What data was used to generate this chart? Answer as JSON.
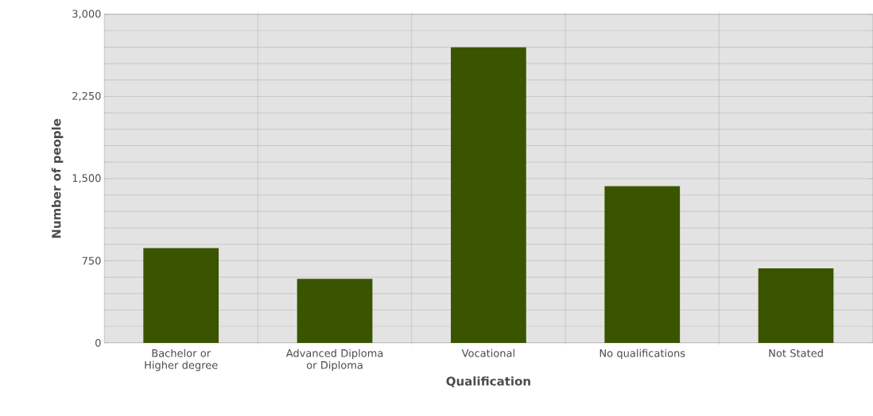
{
  "chart_data": {
    "type": "bar",
    "xlabel": "Qualification",
    "ylabel": "Number of people",
    "categories": [
      "Bachelor or Higher degree",
      "Advanced Diploma or Diploma",
      "Vocational",
      "No qualifications",
      "Not Stated"
    ],
    "values": [
      865,
      585,
      2700,
      1430,
      680
    ],
    "color": "#3a5400",
    "ylim": [
      0,
      3000
    ],
    "yticks": [
      0,
      {
        "value": 750,
        "label": "750"
      },
      {
        "value": 1500,
        "label": "1,500"
      },
      {
        "value": 2250,
        "label": "2,250"
      },
      {
        "value": 3000,
        "label": "3,000"
      }
    ],
    "grid": true
  }
}
